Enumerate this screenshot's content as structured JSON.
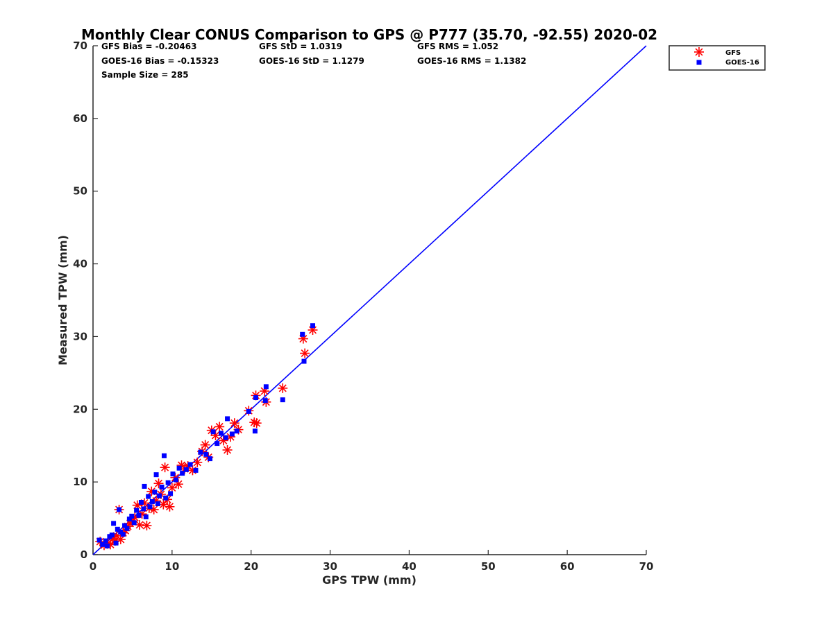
{
  "chart_data": {
    "type": "scatter",
    "title": "Monthly Clear CONUS Comparison to GPS @ P777 (35.70, -92.55) 2020-02",
    "xlabel": "GPS TPW (mm)",
    "ylabel": "Measured TPW (mm)",
    "xlim": [
      0,
      70
    ],
    "ylim": [
      0,
      70
    ],
    "xticks": [
      "0",
      "10",
      "20",
      "30",
      "40",
      "50",
      "60",
      "70"
    ],
    "yticks": [
      "0",
      "10",
      "20",
      "30",
      "40",
      "50",
      "60",
      "70"
    ],
    "grid": false,
    "legend_position": "top-right outside",
    "stats": [
      [
        "GFS Bias = -0.20463",
        "GFS StD = 1.0319",
        "GFS RMS = 1.052"
      ],
      [
        "GOES-16 Bias = -0.15323",
        "GOES-16 StD = 1.1279",
        "GOES-16 RMS = 1.1382"
      ],
      [
        "Sample Size = 285"
      ]
    ],
    "series": [
      {
        "name": "GFS",
        "marker": "asterisk",
        "color": "#ff0000",
        "points": [
          [
            0.9,
            1.8
          ],
          [
            1.4,
            1.3
          ],
          [
            1.9,
            1.6
          ],
          [
            2.2,
            1.4
          ],
          [
            2.5,
            2.2
          ],
          [
            2.8,
            1.9
          ],
          [
            3.0,
            2.6
          ],
          [
            3.3,
            6.2
          ],
          [
            3.5,
            2.1
          ],
          [
            3.8,
            3.0
          ],
          [
            4.1,
            3.3
          ],
          [
            4.4,
            3.9
          ],
          [
            4.7,
            4.3
          ],
          [
            5.0,
            4.6
          ],
          [
            5.3,
            5.1
          ],
          [
            5.6,
            6.8
          ],
          [
            5.9,
            4.1
          ],
          [
            6.2,
            5.6
          ],
          [
            6.5,
            7.1
          ],
          [
            6.8,
            4.0
          ],
          [
            7.1,
            6.4
          ],
          [
            7.4,
            8.7
          ],
          [
            7.7,
            6.2
          ],
          [
            8.0,
            7.4
          ],
          [
            8.3,
            9.8
          ],
          [
            8.6,
            8.3
          ],
          [
            8.9,
            6.9
          ],
          [
            9.1,
            12.0
          ],
          [
            9.4,
            7.6
          ],
          [
            9.7,
            6.6
          ],
          [
            10.0,
            9.2
          ],
          [
            10.4,
            10.6
          ],
          [
            10.8,
            9.7
          ],
          [
            11.2,
            12.3
          ],
          [
            11.6,
            11.8
          ],
          [
            12.0,
            12.2
          ],
          [
            12.6,
            11.6
          ],
          [
            13.2,
            12.7
          ],
          [
            13.8,
            14.2
          ],
          [
            14.2,
            15.1
          ],
          [
            14.6,
            13.4
          ],
          [
            15.0,
            17.1
          ],
          [
            15.5,
            16.4
          ],
          [
            16.0,
            17.6
          ],
          [
            16.5,
            15.7
          ],
          [
            17.0,
            14.4
          ],
          [
            17.4,
            16.2
          ],
          [
            17.9,
            18.1
          ],
          [
            18.4,
            17.2
          ],
          [
            19.7,
            19.8
          ],
          [
            20.4,
            18.2
          ],
          [
            20.6,
            21.9
          ],
          [
            20.7,
            18.1
          ],
          [
            21.7,
            22.5
          ],
          [
            21.9,
            21.0
          ],
          [
            24.0,
            22.9
          ],
          [
            26.6,
            29.7
          ],
          [
            26.8,
            27.7
          ],
          [
            27.8,
            30.9
          ]
        ]
      },
      {
        "name": "GOES-16",
        "marker": "square",
        "color": "#0000ff",
        "points": [
          [
            0.8,
            2.0
          ],
          [
            1.2,
            1.4
          ],
          [
            1.6,
            1.9
          ],
          [
            1.8,
            1.2
          ],
          [
            2.1,
            2.5
          ],
          [
            2.4,
            2.7
          ],
          [
            2.6,
            4.3
          ],
          [
            2.9,
            1.6
          ],
          [
            3.1,
            3.5
          ],
          [
            3.3,
            6.2
          ],
          [
            3.5,
            3.1
          ],
          [
            3.8,
            2.8
          ],
          [
            4.0,
            4.0
          ],
          [
            4.3,
            3.6
          ],
          [
            4.6,
            4.9
          ],
          [
            4.9,
            5.3
          ],
          [
            5.2,
            4.4
          ],
          [
            5.5,
            6.1
          ],
          [
            5.8,
            5.4
          ],
          [
            6.1,
            7.2
          ],
          [
            6.4,
            6.3
          ],
          [
            6.5,
            9.4
          ],
          [
            6.7,
            5.2
          ],
          [
            7.0,
            8.0
          ],
          [
            7.2,
            6.6
          ],
          [
            7.5,
            7.3
          ],
          [
            7.8,
            8.6
          ],
          [
            8.0,
            11.0
          ],
          [
            8.2,
            7.0
          ],
          [
            8.4,
            8.1
          ],
          [
            8.7,
            9.3
          ],
          [
            9.0,
            13.6
          ],
          [
            9.2,
            7.8
          ],
          [
            9.5,
            9.9
          ],
          [
            9.8,
            8.4
          ],
          [
            10.1,
            11.1
          ],
          [
            10.5,
            10.3
          ],
          [
            10.9,
            11.9
          ],
          [
            11.3,
            11.2
          ],
          [
            11.8,
            11.7
          ],
          [
            12.3,
            12.4
          ],
          [
            13.0,
            11.6
          ],
          [
            13.6,
            14.1
          ],
          [
            14.3,
            13.8
          ],
          [
            14.8,
            13.2
          ],
          [
            15.2,
            16.9
          ],
          [
            15.7,
            15.3
          ],
          [
            16.2,
            16.7
          ],
          [
            16.8,
            16.1
          ],
          [
            17.0,
            18.7
          ],
          [
            17.6,
            16.6
          ],
          [
            18.2,
            17.0
          ],
          [
            19.7,
            19.7
          ],
          [
            20.5,
            17.0
          ],
          [
            20.6,
            21.6
          ],
          [
            21.8,
            21.2
          ],
          [
            21.9,
            23.1
          ],
          [
            24.0,
            21.3
          ],
          [
            26.5,
            30.3
          ],
          [
            26.7,
            26.6
          ],
          [
            27.8,
            31.5
          ]
        ]
      }
    ],
    "reference_line": {
      "color": "#0000ff",
      "from": [
        0,
        0
      ],
      "to": [
        70,
        70
      ]
    }
  }
}
